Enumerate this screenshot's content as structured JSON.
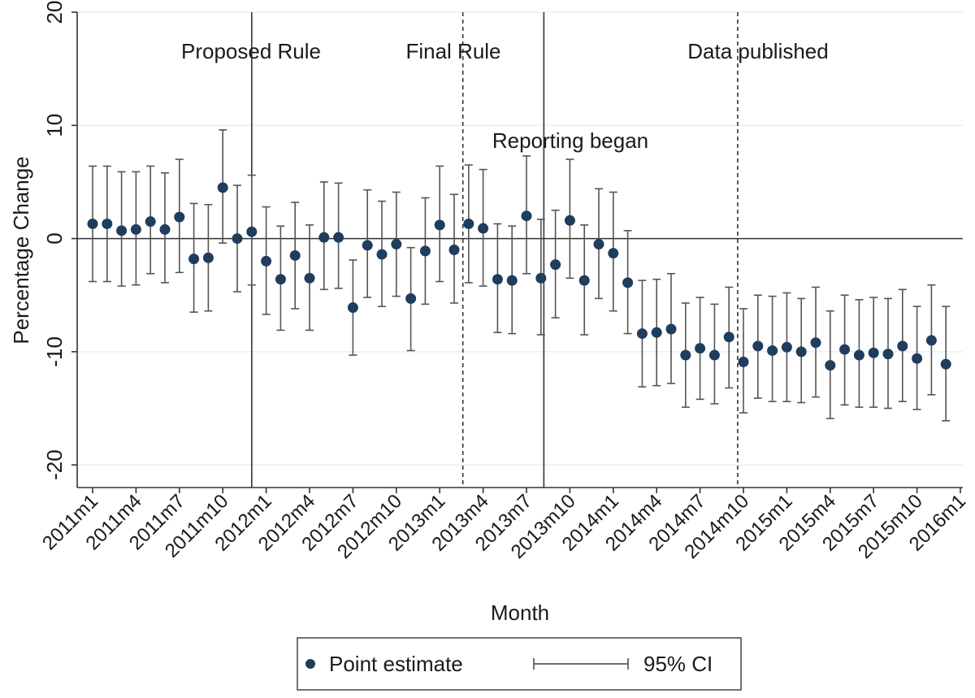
{
  "chart_data": {
    "type": "scatter",
    "xlabel": "Month",
    "ylabel": "Percentage Change",
    "ylim": [
      -22,
      20
    ],
    "yticks": [
      -20,
      -10,
      0,
      10,
      20
    ],
    "grid": true,
    "tick_labels": [
      "2011m1",
      "2011m4",
      "2011m7",
      "2011m10",
      "2012m1",
      "2012m4",
      "2012m7",
      "2012m10",
      "2013m1",
      "2013m4",
      "2013m7",
      "2013m10",
      "2014m1",
      "2014m4",
      "2014m7",
      "2014m10",
      "2015m1",
      "2015m4",
      "2015m7",
      "2015m10",
      "2016m1"
    ],
    "months": [
      "2011m1",
      "2011m2",
      "2011m3",
      "2011m4",
      "2011m5",
      "2011m6",
      "2011m7",
      "2011m8",
      "2011m9",
      "2011m10",
      "2011m11",
      "2011m12",
      "2012m1",
      "2012m2",
      "2012m3",
      "2012m4",
      "2012m5",
      "2012m6",
      "2012m7",
      "2012m8",
      "2012m9",
      "2012m10",
      "2012m11",
      "2012m12",
      "2013m1",
      "2013m2",
      "2013m3",
      "2013m4",
      "2013m5",
      "2013m6",
      "2013m7",
      "2013m8",
      "2013m9",
      "2013m10",
      "2013m11",
      "2013m12",
      "2014m1",
      "2014m2",
      "2014m3",
      "2014m4",
      "2014m5",
      "2014m6",
      "2014m7",
      "2014m8",
      "2014m9",
      "2014m10",
      "2014m11",
      "2014m12",
      "2015m1",
      "2015m2",
      "2015m3",
      "2015m4",
      "2015m5",
      "2015m6",
      "2015m7",
      "2015m8",
      "2015m9",
      "2015m10",
      "2015m11",
      "2015m12"
    ],
    "series": [
      {
        "name": "Point estimate",
        "values": [
          1.3,
          1.3,
          0.7,
          0.8,
          1.5,
          0.8,
          1.9,
          -1.8,
          -1.7,
          4.5,
          0.0,
          0.6,
          -2.0,
          -3.6,
          -1.5,
          -3.5,
          0.1,
          0.1,
          -6.1,
          -0.6,
          -1.4,
          -0.5,
          -5.3,
          -1.1,
          1.2,
          -1.0,
          1.3,
          0.9,
          -3.6,
          -3.7,
          2.0,
          -3.5,
          -2.3,
          1.6,
          -3.7,
          -0.5,
          -1.3,
          -3.9,
          -8.4,
          -8.3,
          -8.0,
          -10.3,
          -9.7,
          -10.3,
          -8.7,
          -10.9,
          -9.5,
          -9.9,
          -9.6,
          -10.0,
          -9.2,
          -11.2,
          -9.8,
          -10.3,
          -10.1,
          -10.2,
          -9.5,
          -10.6,
          -9.0,
          -11.1
        ]
      },
      {
        "name": "95% CI",
        "ci_low": [
          -3.8,
          -3.8,
          -4.2,
          -4.1,
          -3.1,
          -3.9,
          -3.0,
          -6.5,
          -6.4,
          -0.4,
          -4.7,
          -4.1,
          -6.7,
          -8.1,
          -6.2,
          -8.1,
          -4.5,
          -4.4,
          -10.3,
          -5.2,
          -6.0,
          -5.1,
          -9.9,
          -5.8,
          -3.8,
          -5.7,
          -3.9,
          -4.2,
          -8.3,
          -8.4,
          -3.1,
          -8.5,
          -7.0,
          -3.5,
          -8.5,
          -5.3,
          -6.4,
          -8.4,
          -13.1,
          -13.0,
          -12.8,
          -14.9,
          -14.2,
          -14.6,
          -13.2,
          -15.4,
          -14.1,
          -14.4,
          -14.4,
          -14.5,
          -14.0,
          -15.9,
          -14.7,
          -14.9,
          -14.9,
          -15.0,
          -14.4,
          -15.1,
          -13.8,
          -16.1
        ],
        "ci_high": [
          6.4,
          6.4,
          5.9,
          5.9,
          6.4,
          5.8,
          7.0,
          3.1,
          3.0,
          9.6,
          4.7,
          5.6,
          2.8,
          1.1,
          3.2,
          1.2,
          5.0,
          4.9,
          -1.9,
          4.3,
          3.3,
          4.1,
          -0.8,
          3.6,
          6.4,
          3.9,
          6.5,
          6.1,
          1.3,
          1.1,
          7.3,
          1.7,
          2.5,
          7.0,
          1.2,
          4.4,
          4.1,
          0.7,
          -3.7,
          -3.6,
          -3.1,
          -5.7,
          -5.2,
          -5.8,
          -4.3,
          -6.2,
          -5.0,
          -5.1,
          -4.8,
          -5.3,
          -4.3,
          -6.4,
          -5.0,
          -5.4,
          -5.2,
          -5.3,
          -4.5,
          -6.0,
          -4.1,
          -6.0
        ]
      }
    ],
    "reference_lines": [
      {
        "x_month": "2011m12",
        "style": "solid",
        "label": "Proposed Rule"
      },
      {
        "x_month": "2013m2.6",
        "style": "dashed",
        "label": "Final Rule"
      },
      {
        "x_month": "2013m8.2",
        "style": "solid",
        "label": "Reporting began"
      },
      {
        "x_month": "2014m9.6",
        "style": "dashed",
        "label": "Data published"
      }
    ],
    "reference_positions": [
      11.0,
      25.6,
      31.2,
      44.6
    ],
    "horizontal_line": 0,
    "legend": {
      "position": "bottom",
      "items": [
        "Point estimate",
        "95% CI"
      ]
    },
    "colors": {
      "point": "#1f3d5c",
      "ci": "#555555",
      "axis": "#333333",
      "grid": "#e6ebef",
      "ref": "#333333"
    }
  }
}
